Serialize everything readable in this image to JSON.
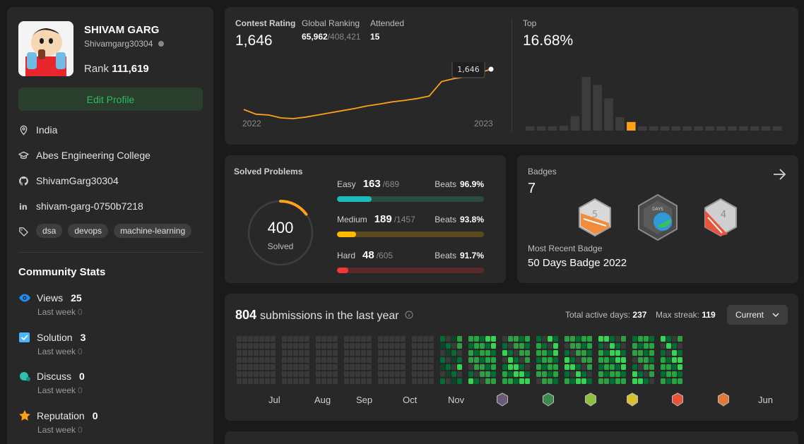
{
  "profile": {
    "name": "SHIVAM GARG",
    "handle": "Shivamgarg30304",
    "rank_label": "Rank",
    "rank_value": "111,619",
    "edit_label": "Edit Profile",
    "location": "India",
    "school": "Abes Engineering College",
    "github": "ShivamGarg30304",
    "linkedin": "shivam-garg-0750b7218",
    "tags": [
      "dsa",
      "devops",
      "machine-learning"
    ]
  },
  "community": {
    "title": "Community Stats",
    "stats": [
      {
        "label": "Views",
        "value": "25",
        "sub": "Last week",
        "delta": "0",
        "icon": "eye-icon",
        "color": "#1c8cf0"
      },
      {
        "label": "Solution",
        "value": "3",
        "sub": "Last week",
        "delta": "0",
        "icon": "check-box-icon",
        "color": "#47b8ff"
      },
      {
        "label": "Discuss",
        "value": "0",
        "sub": "Last week",
        "delta": "0",
        "icon": "chat-bubble-icon",
        "color": "#2ec1ac"
      },
      {
        "label": "Reputation",
        "value": "0",
        "sub": "Last week",
        "delta": "0",
        "icon": "star-icon",
        "color": "#ffa116"
      }
    ]
  },
  "contest": {
    "rating_label": "Contest Rating",
    "rating_value": "1,646",
    "global_label": "Global Ranking",
    "global_value": "65,962",
    "global_total": "/408,421",
    "attended_label": "Attended",
    "attended_value": "15",
    "top_label": "Top",
    "top_value": "16.68%",
    "tooltip": "1,646",
    "x_start": "2022",
    "x_end": "2023",
    "rating_series": [
      1535,
      1522,
      1520,
      1512,
      1510,
      1514,
      1520,
      1526,
      1532,
      1538,
      1545,
      1550,
      1556,
      1560,
      1565,
      1572,
      1612,
      1620,
      1625,
      1635,
      1646
    ],
    "histogram_levels": [
      0.06,
      0.06,
      0.06,
      0.09,
      0.27,
      1.0,
      0.85,
      0.6,
      0.25,
      0.16,
      0.07,
      0.07,
      0.06,
      0.06,
      0.06,
      0.06,
      0.06,
      0.06,
      0.06,
      0.06,
      0.06,
      0.06,
      0.06
    ],
    "highlight_index": 9,
    "accent": "#ffa116"
  },
  "solved": {
    "title": "Solved Problems",
    "total": "400",
    "total_label": "Solved",
    "rows": [
      {
        "label": "Easy",
        "count": "163",
        "total": "/689",
        "beats_label": "Beats",
        "beats": "96.9%",
        "fraction": 0.237,
        "color": "#1cbaba",
        "track": "#2c4a3e"
      },
      {
        "label": "Medium",
        "count": "189",
        "total": "/1457",
        "beats_label": "Beats",
        "beats": "93.8%",
        "fraction": 0.13,
        "color": "#ffb800",
        "track": "#5a4a1e"
      },
      {
        "label": "Hard",
        "count": "48",
        "total": "/605",
        "beats_label": "Beats",
        "beats": "91.7%",
        "fraction": 0.079,
        "color": "#f63636",
        "track": "#5a2a2a"
      }
    ]
  },
  "badges": {
    "title": "Badges",
    "count": "7",
    "recent_label": "Most Recent Badge",
    "recent_name": "50 Days Badge 2022"
  },
  "submissions": {
    "count": "804",
    "text": "submissions in the last year",
    "active_label": "Total active days:",
    "active_value": "237",
    "streak_label": "Max streak:",
    "streak_value": "119",
    "dropdown": "Current",
    "months": [
      "Jul",
      "Aug",
      "Sep",
      "Oct",
      "Nov",
      "Jun"
    ]
  }
}
